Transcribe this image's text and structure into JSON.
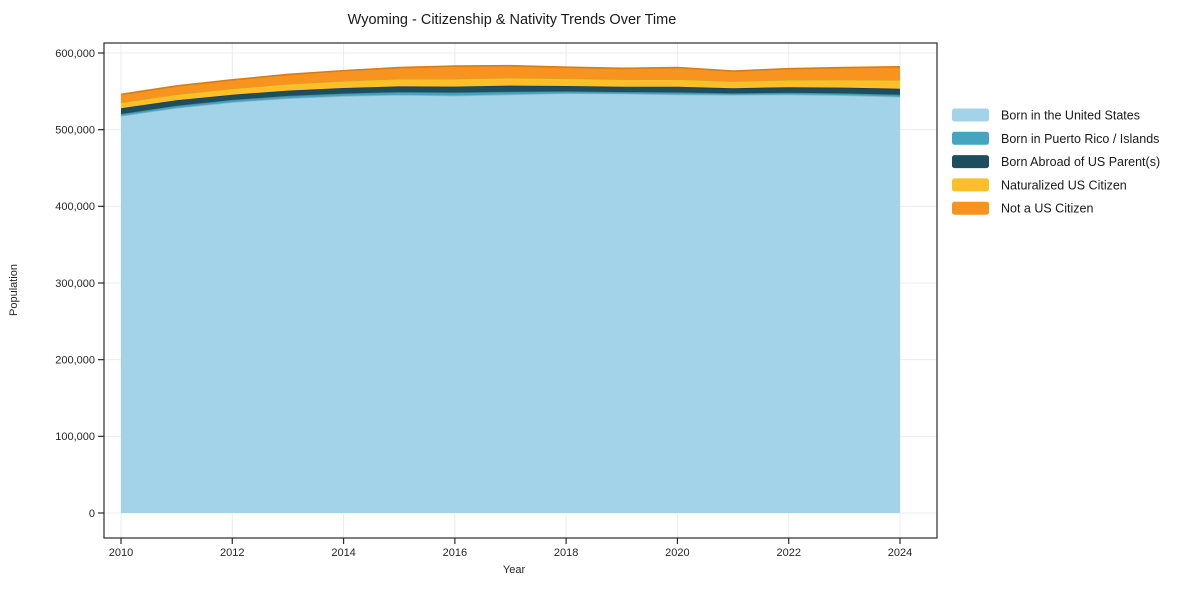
{
  "title": "Wyoming - Citizenship & Nativity Trends Over Time",
  "chart_data": {
    "type": "area",
    "stacked": true,
    "title": "Wyoming - Citizenship & Nativity Trends Over Time",
    "xlabel": "Year",
    "ylabel": "Population",
    "x": [
      2010,
      2011,
      2012,
      2013,
      2014,
      2015,
      2016,
      2017,
      2018,
      2019,
      2020,
      2021,
      2022,
      2023,
      2024
    ],
    "xticks": [
      2010,
      2012,
      2014,
      2016,
      2018,
      2020,
      2022,
      2024
    ],
    "yticks": [
      0,
      100000,
      200000,
      300000,
      400000,
      500000,
      600000
    ],
    "ylim": [
      0,
      600000
    ],
    "xlim": [
      2010,
      2024
    ],
    "grid": true,
    "legend_position": "right",
    "series": [
      {
        "name": "Born in the United States",
        "color": "#a3d3e8",
        "values": [
          518000,
          528500,
          536000,
          541000,
          544000,
          545500,
          544500,
          546000,
          547500,
          547000,
          546000,
          545500,
          546000,
          545000,
          543000
        ]
      },
      {
        "name": "Born in Puerto Rico / Islands",
        "color": "#45a5c1",
        "values": [
          2500,
          2700,
          2800,
          3000,
          3200,
          3500,
          3900,
          3500,
          2500,
          2200,
          2600,
          1800,
          2200,
          2400,
          2600
        ]
      },
      {
        "name": "Born Abroad of US Parent(s)",
        "color": "#1e4d5e",
        "values": [
          7500,
          7200,
          6800,
          7000,
          7200,
          7500,
          7800,
          8000,
          7000,
          6800,
          7400,
          6800,
          7200,
          7500,
          7800
        ]
      },
      {
        "name": "Naturalized US Citizen",
        "color": "#fdbf29",
        "values": [
          7500,
          7800,
          8200,
          8800,
          9300,
          10000,
          10300,
          10500,
          10000,
          9800,
          10000,
          9100,
          9800,
          10500,
          11600
        ]
      },
      {
        "name": "Not a US Citizen",
        "color": "#f7931e",
        "values": [
          10500,
          10800,
          11200,
          12200,
          13300,
          14500,
          16500,
          15500,
          14500,
          14200,
          15000,
          13300,
          14300,
          15600,
          17000
        ]
      }
    ]
  },
  "style_colors": {
    "grid": "#ececec",
    "spine": "#2b2b2b",
    "background": "#ffffff"
  }
}
